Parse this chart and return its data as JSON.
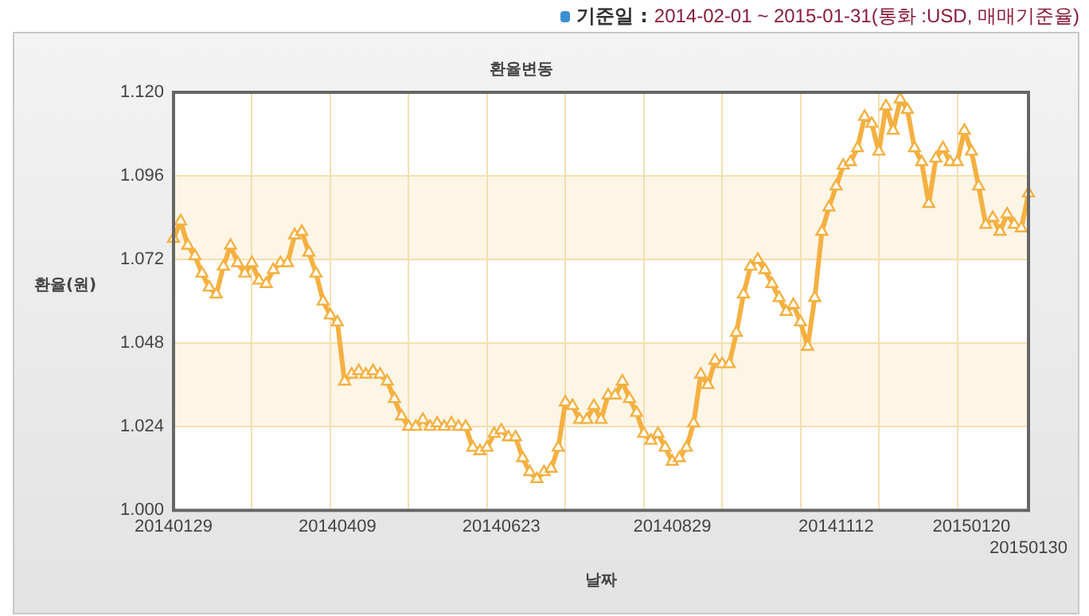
{
  "chart_data": {
    "type": "line",
    "title": "환율변동",
    "subtitle": "기준일 : 2014-02-01 ~ 2015-01-31(통화 :USD, 매매기준율)",
    "xlabel": "날짜",
    "ylabel": "환율(원)",
    "categories": [
      "20140129",
      null,
      null,
      null,
      null,
      null,
      null,
      null,
      null,
      null,
      null,
      null,
      null,
      null,
      null,
      null,
      null,
      null,
      null,
      null,
      null,
      null,
      null,
      "20140409",
      null,
      null,
      null,
      null,
      null,
      null,
      null,
      null,
      null,
      null,
      null,
      null,
      null,
      null,
      null,
      null,
      null,
      null,
      null,
      null,
      null,
      null,
      "20140623",
      null,
      null,
      null,
      null,
      null,
      null,
      null,
      null,
      null,
      null,
      null,
      null,
      null,
      null,
      null,
      null,
      null,
      null,
      null,
      null,
      null,
      null,
      null,
      "20140829",
      null,
      null,
      null,
      null,
      null,
      null,
      null,
      null,
      null,
      null,
      null,
      null,
      null,
      null,
      null,
      null,
      null,
      null,
      null,
      null,
      null,
      null,
      "20141112",
      null,
      null,
      null,
      null,
      null,
      null,
      null,
      null,
      null,
      null,
      null,
      null,
      null,
      null,
      null,
      null,
      null,
      null,
      "20150120",
      null,
      null,
      null,
      null,
      null,
      null,
      null,
      "20150130"
    ],
    "series": [
      {
        "color": "#f5b041",
        "values": [
          1.078,
          1.083,
          1.076,
          1.073,
          1.068,
          1.064,
          1.062,
          1.07,
          1.076,
          1.071,
          1.068,
          1.071,
          1.066,
          1.065,
          1.069,
          1.071,
          1.071,
          1.079,
          1.08,
          1.074,
          1.068,
          1.06,
          1.056,
          1.054,
          1.037,
          1.039,
          1.04,
          1.039,
          1.04,
          1.039,
          1.037,
          1.032,
          1.027,
          1.024,
          1.024,
          1.026,
          1.024,
          1.025,
          1.024,
          1.025,
          1.024,
          1.024,
          1.018,
          1.017,
          1.018,
          1.022,
          1.023,
          1.021,
          1.021,
          1.015,
          1.011,
          1.009,
          1.011,
          1.012,
          1.018,
          1.031,
          1.03,
          1.026,
          1.026,
          1.03,
          1.026,
          1.033,
          1.033,
          1.037,
          1.032,
          1.028,
          1.022,
          1.02,
          1.022,
          1.018,
          1.014,
          1.015,
          1.018,
          1.025,
          1.039,
          1.036,
          1.043,
          1.042,
          1.042,
          1.051,
          1.062,
          1.07,
          1.072,
          1.069,
          1.065,
          1.061,
          1.057,
          1.059,
          1.054,
          1.047,
          1.061,
          1.08,
          1.087,
          1.093,
          1.099,
          1.1,
          1.104,
          1.113,
          1.111,
          1.103,
          1.116,
          1.109,
          1.118,
          1.115,
          1.104,
          1.1,
          1.088,
          1.101,
          1.104,
          1.1,
          1.1,
          1.109,
          1.103,
          1.093,
          1.082,
          1.084,
          1.08,
          1.085,
          1.082,
          1.081,
          1.091
        ]
      }
    ],
    "ylim": [
      1.0,
      1.12
    ],
    "yticks": [
      {
        "value": 1.0,
        "label": "1.000"
      },
      {
        "value": 1.024,
        "label": "1.024"
      },
      {
        "value": 1.048,
        "label": "1.048"
      },
      {
        "value": 1.072,
        "label": "1.072"
      },
      {
        "value": 1.096,
        "label": "1.096"
      },
      {
        "value": 1.12,
        "label": "1.120"
      }
    ],
    "bands": [
      {
        "axis": "y",
        "from": 1.024,
        "to": 1.048,
        "color": "#fdf5e6"
      },
      {
        "axis": "y",
        "from": 1.072,
        "to": 1.096,
        "color": "#fdf5e6"
      }
    ],
    "grid": true,
    "marker": "triangle"
  }
}
